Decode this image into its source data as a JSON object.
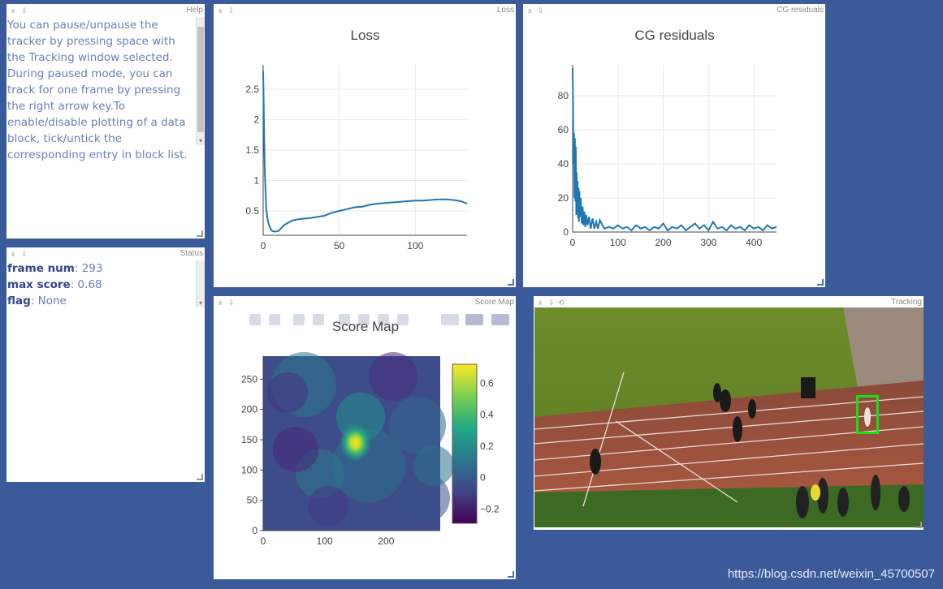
{
  "panes": {
    "help": {
      "title": "Help",
      "text": "You can pause/unpause the tracker by pressing space with the Tracking window selected. During paused mode, you can track for one frame by pressing the right arrow key.To enable/disable plotting of a data block, tick/untick the corresponding entry in block list."
    },
    "status": {
      "title": "Status",
      "rows": [
        {
          "key": "frame num",
          "value": ": 293"
        },
        {
          "key": "max score",
          "value": ": 0.68"
        },
        {
          "key": "flag",
          "value": ": None"
        }
      ]
    },
    "loss": {
      "title": "Loss"
    },
    "cg": {
      "title": "CG residuals"
    },
    "scoremap": {
      "title": "Score Map"
    },
    "tracking": {
      "title": "Tracking"
    }
  },
  "pane_controls": {
    "close": "x",
    "pin": "⇩",
    "refresh": "⟲"
  },
  "colors": {
    "background": "#3b5a9a",
    "line": "#1f77b4",
    "bbox": "#14e014"
  },
  "chart_data": [
    {
      "type": "line",
      "title": "Loss",
      "xlabel": "",
      "ylabel": "",
      "xlim": [
        0,
        134
      ],
      "ylim": [
        0.1,
        2.9
      ],
      "xticks": [
        "0",
        "50",
        "100"
      ],
      "yticks": [
        "0.5",
        "1",
        "1.5",
        "2",
        "2.5"
      ],
      "x": [
        0,
        1,
        2,
        3,
        4,
        5,
        6,
        8,
        10,
        12,
        14,
        16,
        18,
        20,
        25,
        30,
        35,
        40,
        45,
        50,
        55,
        60,
        65,
        70,
        75,
        80,
        85,
        90,
        95,
        100,
        105,
        110,
        115,
        120,
        125,
        130,
        134
      ],
      "y": [
        2.8,
        1.2,
        0.55,
        0.35,
        0.25,
        0.2,
        0.17,
        0.16,
        0.17,
        0.22,
        0.27,
        0.3,
        0.33,
        0.35,
        0.37,
        0.38,
        0.4,
        0.42,
        0.47,
        0.5,
        0.53,
        0.56,
        0.57,
        0.6,
        0.62,
        0.63,
        0.64,
        0.65,
        0.66,
        0.67,
        0.67,
        0.68,
        0.69,
        0.69,
        0.68,
        0.66,
        0.62
      ],
      "grid": true
    },
    {
      "type": "line",
      "title": "CG residuals",
      "xlabel": "",
      "ylabel": "",
      "xlim": [
        0,
        450
      ],
      "ylim": [
        0,
        98
      ],
      "xticks": [
        "0",
        "100",
        "200",
        "300",
        "400"
      ],
      "yticks": [
        "0",
        "20",
        "40",
        "60",
        "80"
      ],
      "x": [
        0,
        1,
        2,
        3,
        4,
        5,
        6,
        7,
        8,
        9,
        10,
        11,
        12,
        13,
        14,
        15,
        16,
        18,
        20,
        22,
        24,
        26,
        28,
        30,
        33,
        36,
        40,
        44,
        48,
        52,
        56,
        60,
        70,
        80,
        90,
        100,
        110,
        120,
        130,
        140,
        150,
        160,
        170,
        180,
        190,
        200,
        210,
        220,
        230,
        240,
        250,
        260,
        270,
        280,
        290,
        300,
        310,
        320,
        330,
        340,
        350,
        360,
        370,
        380,
        390,
        400,
        410,
        420,
        430,
        440,
        450
      ],
      "y": [
        96,
        72,
        40,
        58,
        20,
        55,
        18,
        50,
        10,
        35,
        12,
        30,
        8,
        26,
        6,
        24,
        9,
        20,
        5,
        15,
        4,
        12,
        3,
        10,
        4,
        9,
        2,
        8,
        2,
        6,
        2,
        7,
        2,
        3,
        2,
        4,
        2,
        3,
        1,
        4,
        2,
        3,
        1,
        3,
        2,
        5,
        1,
        3,
        2,
        4,
        1,
        3,
        5,
        2,
        4,
        1,
        6,
        2,
        3,
        1,
        4,
        2,
        3,
        1,
        4,
        2,
        3,
        1,
        4,
        2,
        3
      ],
      "grid": true
    },
    {
      "type": "heatmap",
      "title": "Score Map",
      "xlim": [
        0,
        288
      ],
      "ylim": [
        0,
        288
      ],
      "xticks": [
        "0",
        "100",
        "200"
      ],
      "yticks": [
        "0",
        "50",
        "100",
        "150",
        "200",
        "250"
      ],
      "peak": [
        150,
        145
      ],
      "max": 0.68,
      "colorbar_ticks": [
        "0.6",
        "0.4",
        "0.2",
        "0",
        "−0.2"
      ],
      "colorscale": "viridis"
    }
  ],
  "watermark": "https://blog.csdn.net/weixin_45700507"
}
